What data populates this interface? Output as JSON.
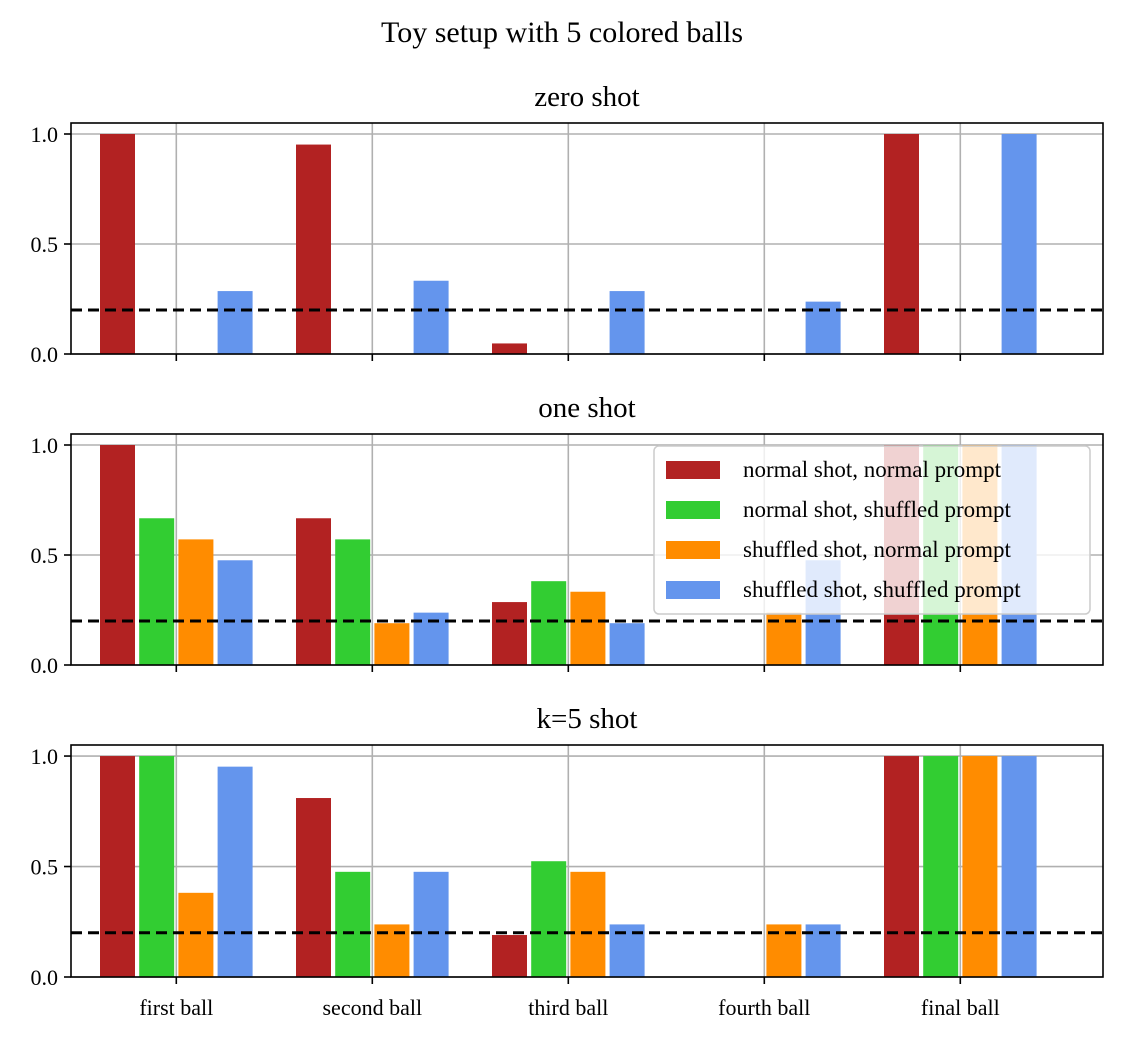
{
  "figure": {
    "title": "Toy setup with 5 colored balls"
  },
  "chart_data": [
    {
      "type": "bar",
      "title": "zero shot",
      "categories": [
        "first ball",
        "second ball",
        "third ball",
        "fourth ball",
        "final ball"
      ],
      "ylim": [
        0,
        1.05
      ],
      "yticks": [
        "0.0",
        "0.5",
        "1.0"
      ],
      "show_xticklabels": false,
      "grid": true,
      "reference_line": 0.2,
      "series": [
        {
          "color": "#b22222",
          "values": [
            1.0,
            0.952,
            0.048,
            0.0,
            1.0
          ]
        },
        {
          "color": "#32cd32",
          "values": [
            0,
            0,
            0,
            0,
            0
          ]
        },
        {
          "color": "#ff8c00",
          "values": [
            0,
            0,
            0,
            0,
            0
          ]
        },
        {
          "color": "#6495ed",
          "values": [
            0.286,
            0.333,
            0.286,
            0.238,
            1.0
          ]
        }
      ]
    },
    {
      "type": "bar",
      "title": "one shot",
      "categories": [
        "first ball",
        "second ball",
        "third ball",
        "fourth ball",
        "final ball"
      ],
      "ylim": [
        0,
        1.05
      ],
      "yticks": [
        "0.0",
        "0.5",
        "1.0"
      ],
      "show_xticklabels": false,
      "grid": true,
      "reference_line": 0.2,
      "legend": {
        "placement": "upper right",
        "entries": [
          {
            "label": "normal shot, normal prompt",
            "color": "#b22222"
          },
          {
            "label": "normal shot, shuffled prompt",
            "color": "#32cd32"
          },
          {
            "label": "shuffled shot, normal prompt",
            "color": "#ff8c00"
          },
          {
            "label": "shuffled shot, shuffled prompt",
            "color": "#6495ed"
          }
        ]
      },
      "series": [
        {
          "name": "normal shot, normal prompt",
          "color": "#b22222",
          "values": [
            1.0,
            0.667,
            0.286,
            0.0,
            1.0
          ]
        },
        {
          "name": "normal shot, shuffled prompt",
          "color": "#32cd32",
          "values": [
            0.667,
            0.571,
            0.381,
            0.0,
            1.0
          ]
        },
        {
          "name": "shuffled shot, normal prompt",
          "color": "#ff8c00",
          "values": [
            0.571,
            0.19,
            0.333,
            0.238,
            1.0
          ]
        },
        {
          "name": "shuffled shot, shuffled prompt",
          "color": "#6495ed",
          "values": [
            0.476,
            0.238,
            0.19,
            0.476,
            1.0
          ]
        }
      ]
    },
    {
      "type": "bar",
      "title": "k=5 shot",
      "categories": [
        "first ball",
        "second ball",
        "third ball",
        "fourth ball",
        "final ball"
      ],
      "ylim": [
        0,
        1.05
      ],
      "yticks": [
        "0.0",
        "0.5",
        "1.0"
      ],
      "show_xticklabels": true,
      "grid": true,
      "reference_line": 0.2,
      "series": [
        {
          "color": "#b22222",
          "values": [
            1.0,
            0.81,
            0.19,
            0.0,
            1.0
          ]
        },
        {
          "color": "#32cd32",
          "values": [
            1.0,
            0.476,
            0.524,
            0.0,
            1.0
          ]
        },
        {
          "color": "#ff8c00",
          "values": [
            0.381,
            0.238,
            0.476,
            0.238,
            1.0
          ]
        },
        {
          "color": "#6495ed",
          "values": [
            0.952,
            0.476,
            0.238,
            0.238,
            1.0
          ]
        }
      ]
    }
  ]
}
